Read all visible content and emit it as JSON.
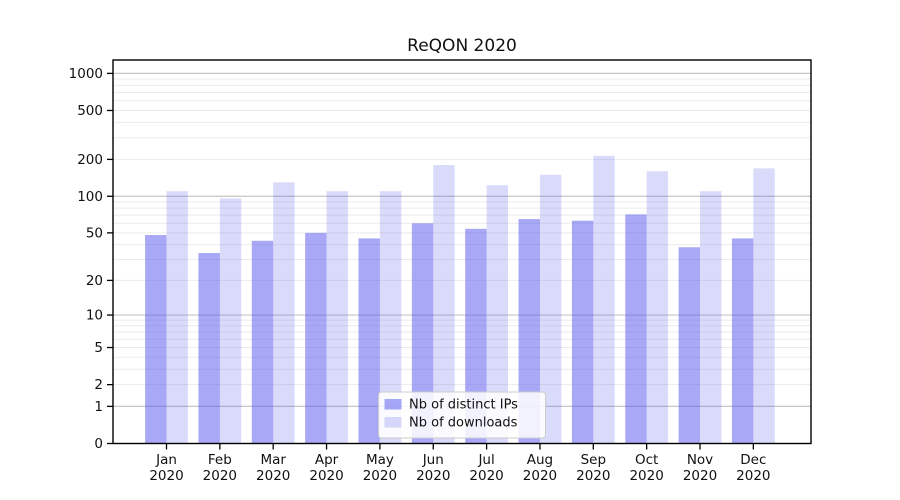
{
  "chart_data": {
    "type": "bar",
    "title": "ReQON 2020",
    "x": [
      "Jan",
      "Feb",
      "Mar",
      "Apr",
      "May",
      "Jun",
      "Jul",
      "Aug",
      "Sep",
      "Oct",
      "Nov",
      "Dec"
    ],
    "x_year": "2020",
    "series": [
      {
        "name": "Nb of distinct IPs",
        "color": "#5151ed",
        "opacity": 0.5,
        "values": [
          48,
          34,
          43,
          50,
          45,
          60,
          54,
          65,
          63,
          71,
          38,
          45
        ]
      },
      {
        "name": "Nb of downloads",
        "color": "#5151ed",
        "opacity": 0.21,
        "values": [
          110,
          96,
          130,
          110,
          110,
          180,
          123,
          150,
          214,
          160,
          110,
          169
        ]
      }
    ],
    "y_axis": {
      "scale": "log1p",
      "ticks": [
        0,
        1,
        2,
        5,
        10,
        20,
        50,
        100,
        200,
        500,
        1000
      ],
      "top_value": 1230
    },
    "grid": {
      "major_ticks": [
        1,
        10,
        100,
        1000
      ],
      "major_color": "#c6c6c6",
      "minor_color": "#ebebeb"
    },
    "legend": {
      "position": "lower-center"
    },
    "colors": {
      "bar_base": "#5151ed",
      "axis": "#000000",
      "text": "#111111",
      "legend_border": "#cccccc",
      "legend_bg": "#ffffff"
    }
  }
}
